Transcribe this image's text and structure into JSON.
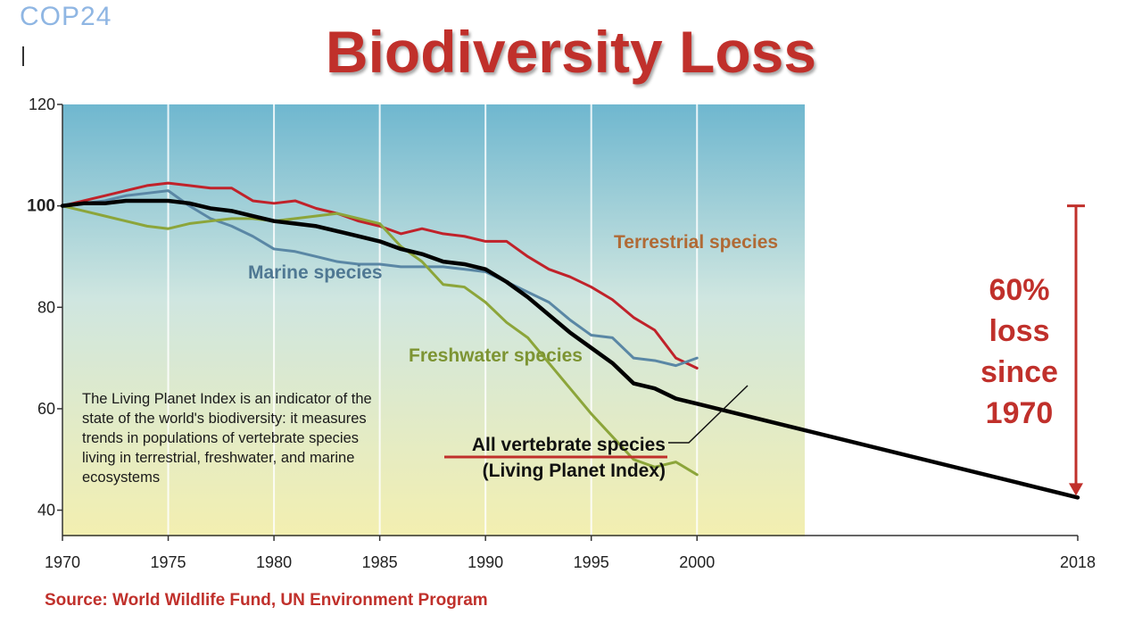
{
  "header": {
    "logo": "COP24",
    "title": "Biodiversity Loss"
  },
  "note": "The Living Planet Index is an indicator of the state of the world's biodiversity: it measures trends in populations of vertebrate species living in terrestrial, freshwater, and marine ecosystems",
  "loss_annotation": "60% loss since 1970",
  "source": "Source: World Wildlife Fund, UN Environment Program",
  "colors": {
    "title": "#c0302b",
    "terrestrial": "#c0222a",
    "marine": "#5a87a5",
    "freshwater": "#8ca53a",
    "all": "#000000",
    "arrow": "#c0302b"
  },
  "chart_data": {
    "type": "line",
    "title": "Biodiversity Loss",
    "xlabel": "",
    "ylabel": "",
    "xlim": [
      1970,
      2018
    ],
    "ylim": [
      35,
      120
    ],
    "x_ticks": [
      "1970",
      "1975",
      "1980",
      "1985",
      "1990",
      "1995",
      "2000",
      "2018"
    ],
    "y_ticks": [
      "40",
      "60",
      "80",
      "100",
      "120"
    ],
    "grid": true,
    "series": [
      {
        "name": "Terrestrial species",
        "color": "#c0222a",
        "x": [
          1970,
          1971,
          1972,
          1973,
          1974,
          1975,
          1976,
          1977,
          1978,
          1979,
          1980,
          1981,
          1982,
          1983,
          1984,
          1985,
          1986,
          1987,
          1988,
          1989,
          1990,
          1991,
          1992,
          1993,
          1994,
          1995,
          1996,
          1997,
          1998,
          1999,
          2000
        ],
        "y": [
          100,
          101,
          102,
          103,
          104,
          104.5,
          104,
          103.5,
          103.5,
          101,
          100.5,
          101,
          99.5,
          98.5,
          97,
          96,
          94.5,
          95.5,
          94.5,
          94,
          93,
          93,
          90,
          87.5,
          86,
          84,
          81.5,
          78,
          75.5,
          70,
          68
        ]
      },
      {
        "name": "Marine species",
        "color": "#5a87a5",
        "x": [
          1970,
          1971,
          1972,
          1973,
          1974,
          1975,
          1976,
          1977,
          1978,
          1979,
          1980,
          1981,
          1982,
          1983,
          1984,
          1985,
          1986,
          1987,
          1988,
          1989,
          1990,
          1991,
          1992,
          1993,
          1994,
          1995,
          1996,
          1997,
          1998,
          1999,
          2000
        ],
        "y": [
          100,
          100.5,
          101,
          102,
          102.5,
          103,
          100,
          97.5,
          96,
          94,
          91.5,
          91,
          90,
          89,
          88.5,
          88.5,
          88,
          88,
          88,
          87.5,
          87,
          85,
          83,
          81,
          77.5,
          74.5,
          74,
          70,
          69.5,
          68.5,
          70
        ]
      },
      {
        "name": "Freshwater species",
        "color": "#8ca53a",
        "x": [
          1970,
          1971,
          1972,
          1973,
          1974,
          1975,
          1976,
          1977,
          1978,
          1979,
          1980,
          1981,
          1982,
          1983,
          1984,
          1985,
          1986,
          1987,
          1988,
          1989,
          1990,
          1991,
          1992,
          1993,
          1994,
          1995,
          1996,
          1997,
          1998,
          1999,
          2000
        ],
        "y": [
          100,
          99,
          98,
          97,
          96,
          95.5,
          96.5,
          97,
          97.5,
          97.5,
          97,
          97.5,
          98,
          98.5,
          97.5,
          96.5,
          92,
          89,
          84.5,
          84,
          81,
          77,
          74,
          69,
          64,
          59,
          54.5,
          50,
          48.5,
          49.5,
          47
        ]
      },
      {
        "name": "All vertebrate species (Living Planet Index)",
        "color": "#000000",
        "x": [
          1970,
          1971,
          1972,
          1973,
          1974,
          1975,
          1976,
          1977,
          1978,
          1979,
          1980,
          1981,
          1982,
          1983,
          1984,
          1985,
          1986,
          1987,
          1988,
          1989,
          1990,
          1991,
          1992,
          1993,
          1994,
          1995,
          1996,
          1997,
          1998,
          1999,
          2000,
          2018
        ],
        "y": [
          100,
          100.5,
          100.5,
          101,
          101,
          101,
          100.5,
          99.5,
          99,
          98,
          97,
          96.5,
          96,
          95,
          94,
          93,
          91.5,
          90.5,
          89,
          88.5,
          87.5,
          85,
          82,
          78.5,
          75,
          72,
          69,
          65,
          64,
          62,
          61,
          42.5
        ]
      }
    ],
    "series_labels": [
      {
        "text": "Terrestrial species"
      },
      {
        "text": "Marine species"
      },
      {
        "text": "Freshwater species"
      },
      {
        "text": "All vertebrate species"
      },
      {
        "text": "(Living Planet Index)"
      }
    ],
    "loss_arrow": {
      "x": 2018,
      "from": 100,
      "to": 42.5
    }
  }
}
